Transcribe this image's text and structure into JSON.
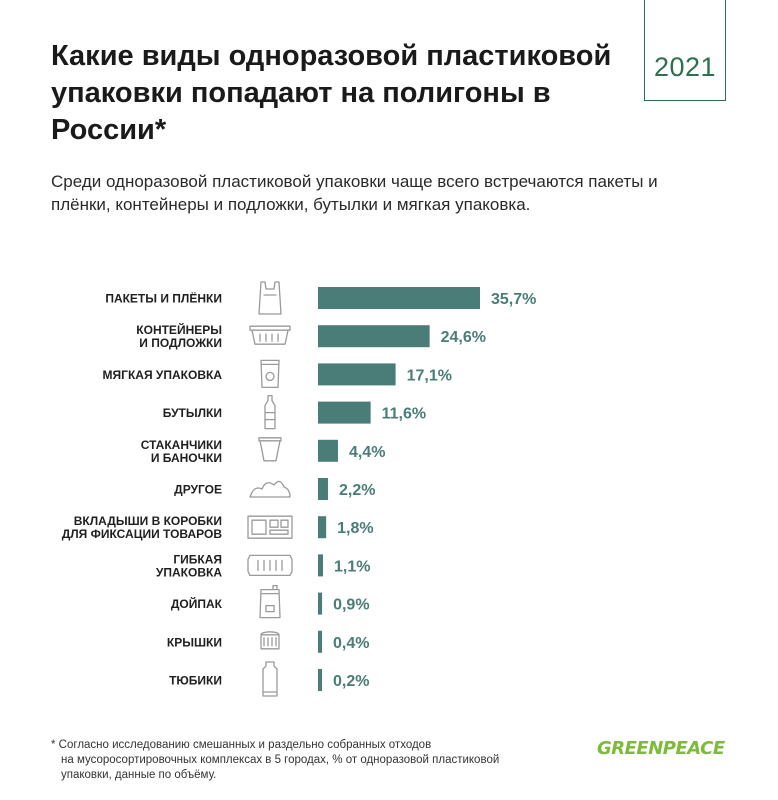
{
  "year": "2021",
  "title": "Какие виды одноразовой пластиковой упаковки попадают на полигоны в России*",
  "subtitle": "Среди одноразовой пластиковой упаковки чаще всего встречаются пакеты и плёнки, контейнеры и подложки, бутылки и мягкая упаковка.",
  "chart_data": {
    "type": "bar",
    "orientation": "horizontal",
    "unit": "%",
    "categories": [
      [
        "ПАКЕТЫ И ПЛЁНКИ"
      ],
      [
        "КОНТЕЙНЕРЫ",
        "И ПОДЛОЖКИ"
      ],
      [
        "МЯГКАЯ УПАКОВКА"
      ],
      [
        "БУТЫЛКИ"
      ],
      [
        "СТАКАНЧИКИ",
        "И БАНОЧКИ"
      ],
      [
        "ДРУГОЕ"
      ],
      [
        "ВКЛАДЫШИ В КОРОБКИ",
        "ДЛЯ ФИКСАЦИИ ТОВАРОВ"
      ],
      [
        "ГИБКАЯ",
        "УПАКОВКА"
      ],
      [
        "ДОЙПАК"
      ],
      [
        "КРЫШКИ"
      ],
      [
        "ТЮБИКИ"
      ]
    ],
    "values": [
      35.7,
      24.6,
      17.1,
      11.6,
      4.4,
      2.2,
      1.8,
      1.1,
      0.9,
      0.4,
      0.2
    ],
    "value_labels": [
      "35,7%",
      "24,6%",
      "17,1%",
      "11,6%",
      "4,4%",
      "2,2%",
      "1,8%",
      "1,1%",
      "0,9%",
      "0,4%",
      "0,2%"
    ],
    "icons": [
      "bag-icon",
      "container-icon",
      "soft-pack-icon",
      "bottle-icon",
      "cup-icon",
      "other-icon",
      "insert-tray-icon",
      "flexible-pack-icon",
      "doypack-icon",
      "lid-icon",
      "tube-icon"
    ],
    "bar_color": "#4a7c78"
  },
  "footnote": {
    "line1": "* Согласно исследованию смешанных и раздельно собранных отходов",
    "line2": "на мусоросортировочных комплексах в 5 городах, % от одноразовой пластиковой упаковки, данные по объёму."
  },
  "logo": "GREENPEACE",
  "colors": {
    "accent": "#2e6f4e",
    "bar": "#4a7c78",
    "icon": "#9a9a9a",
    "logo": "#7dbb3a"
  }
}
